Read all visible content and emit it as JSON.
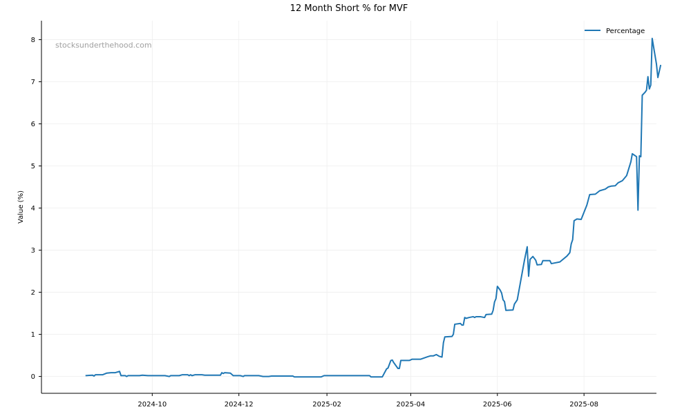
{
  "chart_data": {
    "type": "line",
    "title": "12 Month Short % for MVF",
    "xlabel": "",
    "ylabel": "Value (%)",
    "watermark": "stocksunderthehood.com",
    "legend_position": "top-right",
    "grid": true,
    "ylim": [
      -0.4,
      8.45
    ],
    "xlim": [
      "2024-07-15",
      "2025-09-21"
    ],
    "x_ticks": [
      "2024-10",
      "2024-12",
      "2025-02",
      "2025-04",
      "2025-06",
      "2025-08"
    ],
    "x_tick_values": [
      "2024-10-01",
      "2024-12-01",
      "2025-02-01",
      "2025-04-01",
      "2025-06-01",
      "2025-08-01"
    ],
    "y_ticks": [
      0,
      1,
      2,
      3,
      4,
      5,
      6,
      7,
      8
    ],
    "series": [
      {
        "name": "Percentage",
        "color": "#1f77b4",
        "points": [
          [
            "2024-08-15",
            0.02
          ],
          [
            "2024-08-20",
            0.03
          ],
          [
            "2024-08-21",
            0.01
          ],
          [
            "2024-08-22",
            0.04
          ],
          [
            "2024-08-27",
            0.04
          ],
          [
            "2024-08-30",
            0.08
          ],
          [
            "2024-09-02",
            0.09
          ],
          [
            "2024-09-05",
            0.09
          ],
          [
            "2024-09-08",
            0.12
          ],
          [
            "2024-09-09",
            0.02
          ],
          [
            "2024-09-12",
            0.02
          ],
          [
            "2024-09-13",
            0.0
          ],
          [
            "2024-09-14",
            0.02
          ],
          [
            "2024-09-22",
            0.02
          ],
          [
            "2024-09-24",
            0.03
          ],
          [
            "2024-09-28",
            0.02
          ],
          [
            "2024-10-05",
            0.02
          ],
          [
            "2024-10-10",
            0.02
          ],
          [
            "2024-10-13",
            0.0
          ],
          [
            "2024-10-14",
            0.02
          ],
          [
            "2024-10-20",
            0.02
          ],
          [
            "2024-10-22",
            0.04
          ],
          [
            "2024-10-26",
            0.04
          ],
          [
            "2024-10-27",
            0.02
          ],
          [
            "2024-10-28",
            0.04
          ],
          [
            "2024-10-29",
            0.02
          ],
          [
            "2024-10-31",
            0.04
          ],
          [
            "2024-11-05",
            0.04
          ],
          [
            "2024-11-07",
            0.03
          ],
          [
            "2024-11-15",
            0.03
          ],
          [
            "2024-11-18",
            0.03
          ],
          [
            "2024-11-19",
            0.09
          ],
          [
            "2024-11-20",
            0.07
          ],
          [
            "2024-11-21",
            0.09
          ],
          [
            "2024-11-25",
            0.08
          ],
          [
            "2024-11-27",
            0.02
          ],
          [
            "2024-12-02",
            0.02
          ],
          [
            "2024-12-04",
            0.0
          ],
          [
            "2024-12-05",
            0.02
          ],
          [
            "2024-12-12",
            0.02
          ],
          [
            "2024-12-15",
            0.02
          ],
          [
            "2024-12-18",
            0.0
          ],
          [
            "2024-12-22",
            0.0
          ],
          [
            "2024-12-24",
            0.01
          ],
          [
            "2025-01-01",
            0.01
          ],
          [
            "2025-01-08",
            0.01
          ],
          [
            "2025-01-09",
            -0.01
          ],
          [
            "2025-01-25",
            -0.01
          ],
          [
            "2025-01-28",
            -0.01
          ],
          [
            "2025-01-30",
            0.02
          ],
          [
            "2025-02-15",
            0.02
          ],
          [
            "2025-03-01",
            0.02
          ],
          [
            "2025-03-03",
            0.02
          ],
          [
            "2025-03-04",
            -0.01
          ],
          [
            "2025-03-10",
            -0.01
          ],
          [
            "2025-03-12",
            -0.01
          ],
          [
            "2025-03-15",
            0.18
          ],
          [
            "2025-03-16",
            0.2
          ],
          [
            "2025-03-18",
            0.38
          ],
          [
            "2025-03-19",
            0.39
          ],
          [
            "2025-03-20",
            0.33
          ],
          [
            "2025-03-23",
            0.19
          ],
          [
            "2025-03-24",
            0.19
          ],
          [
            "2025-03-25",
            0.38
          ],
          [
            "2025-03-31",
            0.38
          ],
          [
            "2025-04-02",
            0.41
          ],
          [
            "2025-04-08",
            0.41
          ],
          [
            "2025-04-13",
            0.47
          ],
          [
            "2025-04-15",
            0.49
          ],
          [
            "2025-04-17",
            0.49
          ],
          [
            "2025-04-19",
            0.52
          ],
          [
            "2025-04-21",
            0.48
          ],
          [
            "2025-04-23",
            0.46
          ],
          [
            "2025-04-24",
            0.8
          ],
          [
            "2025-04-25",
            0.94
          ],
          [
            "2025-04-30",
            0.95
          ],
          [
            "2025-05-01",
            1.0
          ],
          [
            "2025-05-02",
            1.24
          ],
          [
            "2025-05-06",
            1.26
          ],
          [
            "2025-05-07",
            1.22
          ],
          [
            "2025-05-08",
            1.22
          ],
          [
            "2025-05-09",
            1.4
          ],
          [
            "2025-05-10",
            1.38
          ],
          [
            "2025-05-12",
            1.4
          ],
          [
            "2025-05-15",
            1.42
          ],
          [
            "2025-05-16",
            1.4
          ],
          [
            "2025-05-17",
            1.42
          ],
          [
            "2025-05-20",
            1.42
          ],
          [
            "2025-05-23",
            1.4
          ],
          [
            "2025-05-24",
            1.47
          ],
          [
            "2025-05-28",
            1.48
          ],
          [
            "2025-05-29",
            1.57
          ],
          [
            "2025-05-30",
            1.77
          ],
          [
            "2025-05-31",
            1.85
          ],
          [
            "2025-06-01",
            2.14
          ],
          [
            "2025-06-03",
            2.05
          ],
          [
            "2025-06-04",
            1.98
          ],
          [
            "2025-06-05",
            1.82
          ],
          [
            "2025-06-06",
            1.78
          ],
          [
            "2025-06-07",
            1.57
          ],
          [
            "2025-06-12",
            1.58
          ],
          [
            "2025-06-13",
            1.72
          ],
          [
            "2025-06-15",
            1.82
          ],
          [
            "2025-06-20",
            2.75
          ],
          [
            "2025-06-22",
            3.08
          ],
          [
            "2025-06-23",
            2.38
          ],
          [
            "2025-06-24",
            2.78
          ],
          [
            "2025-06-26",
            2.85
          ],
          [
            "2025-06-28",
            2.76
          ],
          [
            "2025-06-29",
            2.65
          ],
          [
            "2025-07-02",
            2.66
          ],
          [
            "2025-07-03",
            2.75
          ],
          [
            "2025-07-08",
            2.75
          ],
          [
            "2025-07-09",
            2.68
          ],
          [
            "2025-07-15",
            2.72
          ],
          [
            "2025-07-20",
            2.86
          ],
          [
            "2025-07-22",
            2.94
          ],
          [
            "2025-07-23",
            3.15
          ],
          [
            "2025-07-24",
            3.25
          ],
          [
            "2025-07-25",
            3.7
          ],
          [
            "2025-07-27",
            3.74
          ],
          [
            "2025-07-30",
            3.73
          ],
          [
            "2025-08-03",
            4.07
          ],
          [
            "2025-08-05",
            4.32
          ],
          [
            "2025-08-09",
            4.33
          ],
          [
            "2025-08-12",
            4.41
          ],
          [
            "2025-08-16",
            4.45
          ],
          [
            "2025-08-18",
            4.5
          ],
          [
            "2025-08-20",
            4.52
          ],
          [
            "2025-08-23",
            4.53
          ],
          [
            "2025-08-25",
            4.6
          ],
          [
            "2025-08-28",
            4.65
          ],
          [
            "2025-08-31",
            4.77
          ],
          [
            "2025-09-03",
            5.1
          ],
          [
            "2025-09-04",
            5.29
          ],
          [
            "2025-09-07",
            5.22
          ],
          [
            "2025-09-08",
            3.95
          ],
          [
            "2025-09-09",
            5.24
          ],
          [
            "2025-09-10",
            5.22
          ],
          [
            "2025-09-11",
            6.68
          ],
          [
            "2025-09-13",
            6.75
          ],
          [
            "2025-09-14",
            6.8
          ],
          [
            "2025-09-15",
            7.12
          ],
          [
            "2025-09-16",
            6.83
          ],
          [
            "2025-09-17",
            6.92
          ],
          [
            "2025-09-18",
            8.03
          ],
          [
            "2025-09-21",
            7.42
          ],
          [
            "2025-09-22",
            7.1
          ],
          [
            "2025-09-24",
            7.4
          ]
        ]
      }
    ]
  }
}
